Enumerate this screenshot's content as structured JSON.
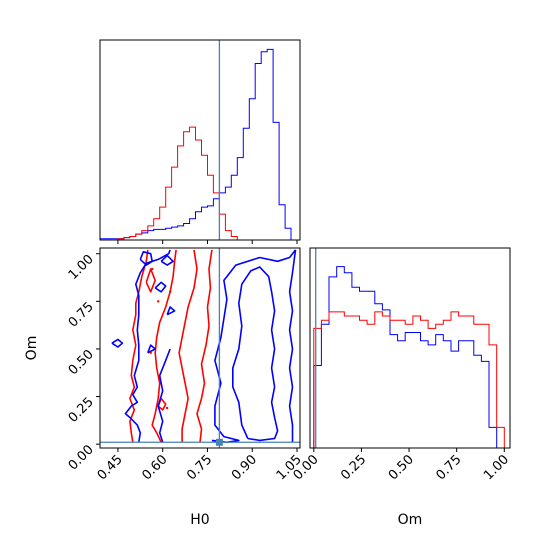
{
  "chart_data": {
    "type": "corner",
    "parameters": [
      "H0",
      "Om"
    ],
    "axis_labels": {
      "H0": "H0",
      "Om": "Om"
    },
    "ranges": {
      "H0": [
        0.39,
        1.06
      ],
      "Om": [
        -0.02,
        1.03
      ]
    },
    "ticks": {
      "H0": [
        "0.45",
        "0.60",
        "0.75",
        "0.90",
        "1.05"
      ],
      "Om": [
        "0.00",
        "0.25",
        "0.50",
        "0.75",
        "1.00"
      ]
    },
    "truth": {
      "H0": 0.79,
      "Om": 0.01
    },
    "colors": {
      "run_a": "#0000ff",
      "run_b": "#ff0000",
      "truth": "#4682b4"
    },
    "hist_H0": {
      "bin_edges": [
        0.39,
        0.41,
        0.43,
        0.45,
        0.47,
        0.49,
        0.51,
        0.53,
        0.55,
        0.57,
        0.59,
        0.61,
        0.63,
        0.65,
        0.67,
        0.69,
        0.71,
        0.73,
        0.75,
        0.77,
        0.79,
        0.81,
        0.83,
        0.85,
        0.87,
        0.89,
        0.91,
        0.93,
        0.95,
        0.97,
        0.99,
        1.01,
        1.03
      ],
      "run_a": [
        1,
        1,
        1,
        1,
        2,
        3,
        5,
        6,
        8,
        9,
        9,
        10,
        11,
        12,
        14,
        18,
        24,
        28,
        29,
        35,
        40,
        45,
        55,
        70,
        95,
        120,
        150,
        160,
        162,
        100,
        30,
        10
      ],
      "run_b": [
        0,
        0,
        0,
        1,
        2,
        3,
        5,
        8,
        12,
        18,
        28,
        45,
        62,
        80,
        92,
        96,
        85,
        72,
        55,
        40,
        22,
        8,
        3,
        0,
        0,
        0,
        0,
        0,
        0,
        0,
        0,
        0
      ],
      "ylim": [
        0,
        170
      ]
    },
    "hist_Om": {
      "bin_edges": [
        0.0,
        0.04,
        0.08,
        0.12,
        0.16,
        0.2,
        0.24,
        0.28,
        0.32,
        0.36,
        0.4,
        0.44,
        0.48,
        0.52,
        0.56,
        0.6,
        0.64,
        0.68,
        0.72,
        0.76,
        0.8,
        0.84,
        0.88,
        0.92,
        0.96,
        1.0
      ],
      "run_a": [
        0.4,
        0.6,
        0.83,
        0.88,
        0.85,
        0.78,
        0.76,
        0.76,
        0.7,
        0.67,
        0.55,
        0.52,
        0.56,
        0.56,
        0.52,
        0.5,
        0.55,
        0.52,
        0.47,
        0.52,
        0.52,
        0.45,
        0.42,
        0.1,
        0.0
      ],
      "run_b": [
        0.58,
        0.62,
        0.66,
        0.66,
        0.64,
        0.64,
        0.62,
        0.6,
        0.66,
        0.64,
        0.62,
        0.62,
        0.6,
        0.64,
        0.62,
        0.58,
        0.6,
        0.62,
        0.66,
        0.64,
        0.64,
        0.6,
        0.6,
        0.5,
        0.1
      ],
      "ylim": [
        0,
        0.97
      ]
    },
    "contours": {
      "run_a": [
        [
          [
            0.885,
            0.03
          ],
          [
            0.925,
            0.02
          ],
          [
            0.975,
            0.03
          ],
          [
            0.985,
            0.07
          ],
          [
            0.975,
            0.14
          ],
          [
            0.965,
            0.22
          ],
          [
            0.975,
            0.3
          ],
          [
            0.965,
            0.4
          ],
          [
            0.975,
            0.5
          ],
          [
            0.965,
            0.6
          ],
          [
            0.975,
            0.7
          ],
          [
            0.965,
            0.8
          ],
          [
            0.955,
            0.88
          ],
          [
            0.925,
            0.93
          ],
          [
            0.895,
            0.91
          ],
          [
            0.865,
            0.84
          ],
          [
            0.855,
            0.74
          ],
          [
            0.865,
            0.62
          ],
          [
            0.855,
            0.5
          ],
          [
            0.835,
            0.4
          ],
          [
            0.835,
            0.3
          ],
          [
            0.855,
            0.22
          ],
          [
            0.865,
            0.1
          ],
          [
            0.885,
            0.03
          ]
        ],
        [
          [
            0.765,
            0.02
          ],
          [
            0.815,
            0.01
          ],
          [
            0.855,
            0.02
          ],
          [
            0.805,
            0.04
          ],
          [
            0.775,
            0.1
          ],
          [
            0.775,
            0.2
          ],
          [
            0.795,
            0.32
          ],
          [
            0.775,
            0.44
          ],
          [
            0.795,
            0.56
          ],
          [
            0.805,
            0.66
          ],
          [
            0.815,
            0.76
          ],
          [
            0.805,
            0.86
          ],
          [
            0.845,
            0.94
          ],
          [
            0.925,
            0.98
          ],
          [
            0.985,
            0.96
          ],
          [
            1.025,
            0.98
          ],
          [
            1.045,
            1.02
          ]
        ],
        [
          [
            1.035,
            0.01
          ],
          [
            1.035,
            0.1
          ],
          [
            1.025,
            0.2
          ],
          [
            1.035,
            0.3
          ],
          [
            1.025,
            0.4
          ],
          [
            1.035,
            0.5
          ],
          [
            1.025,
            0.6
          ],
          [
            1.035,
            0.7
          ],
          [
            1.025,
            0.8
          ],
          [
            1.035,
            0.9
          ],
          [
            1.045,
            1.02
          ]
        ],
        [
          [
            0.6,
            0.01
          ],
          [
            0.59,
            0.06
          ],
          [
            0.6,
            0.12
          ],
          [
            0.585,
            0.2
          ],
          [
            0.6,
            0.28
          ],
          [
            0.59,
            0.36
          ],
          [
            0.61,
            0.44
          ],
          [
            0.625,
            0.5
          ]
        ],
        [
          [
            0.52,
            0.01
          ],
          [
            0.525,
            0.06
          ],
          [
            0.515,
            0.1
          ],
          [
            0.49,
            0.14
          ],
          [
            0.475,
            0.16
          ],
          [
            0.495,
            0.2
          ],
          [
            0.515,
            0.22
          ],
          [
            0.5,
            0.26
          ],
          [
            0.515,
            0.3
          ],
          [
            0.505,
            0.36
          ],
          [
            0.52,
            0.44
          ],
          [
            0.52,
            0.52
          ],
          [
            0.515,
            0.6
          ],
          [
            0.52,
            0.68
          ],
          [
            0.52,
            0.78
          ],
          [
            0.51,
            0.84
          ],
          [
            0.525,
            0.9
          ],
          [
            0.545,
            0.95
          ],
          [
            0.585,
            0.97
          ],
          [
            0.62,
            1.0
          ],
          [
            0.625,
            1.02
          ]
        ],
        [
          [
            0.525,
            0.97
          ],
          [
            0.545,
            0.94
          ],
          [
            0.565,
            0.96
          ],
          [
            0.56,
            1.0
          ],
          [
            0.535,
            1.01
          ],
          [
            0.525,
            0.97
          ]
        ],
        [
          [
            0.43,
            0.53
          ],
          [
            0.45,
            0.51
          ],
          [
            0.465,
            0.53
          ],
          [
            0.45,
            0.55
          ],
          [
            0.43,
            0.53
          ]
        ],
        [
          [
            0.55,
            0.48
          ],
          [
            0.575,
            0.5
          ],
          [
            0.56,
            0.52
          ],
          [
            0.55,
            0.48
          ]
        ],
        [
          [
            0.615,
            0.68
          ],
          [
            0.64,
            0.7
          ],
          [
            0.625,
            0.72
          ],
          [
            0.615,
            0.68
          ]
        ],
        [
          [
            0.575,
            0.82
          ],
          [
            0.595,
            0.8
          ],
          [
            0.61,
            0.83
          ],
          [
            0.595,
            0.85
          ],
          [
            0.575,
            0.82
          ]
        ],
        [
          [
            0.595,
            0.96
          ],
          [
            0.615,
            0.94
          ],
          [
            0.635,
            0.96
          ],
          [
            0.615,
            0.99
          ],
          [
            0.595,
            0.96
          ]
        ]
      ],
      "run_b": [
        [
          [
            0.725,
            0.01
          ],
          [
            0.73,
            0.08
          ],
          [
            0.715,
            0.16
          ],
          [
            0.73,
            0.24
          ],
          [
            0.74,
            0.32
          ],
          [
            0.73,
            0.42
          ],
          [
            0.745,
            0.52
          ],
          [
            0.755,
            0.62
          ],
          [
            0.75,
            0.72
          ],
          [
            0.76,
            0.82
          ],
          [
            0.755,
            0.92
          ],
          [
            0.765,
            1.02
          ]
        ],
        [
          [
            0.665,
            0.01
          ],
          [
            0.665,
            0.08
          ],
          [
            0.675,
            0.16
          ],
          [
            0.685,
            0.24
          ],
          [
            0.675,
            0.32
          ],
          [
            0.665,
            0.4
          ],
          [
            0.655,
            0.48
          ],
          [
            0.665,
            0.56
          ],
          [
            0.675,
            0.64
          ],
          [
            0.685,
            0.72
          ],
          [
            0.705,
            0.82
          ],
          [
            0.715,
            0.92
          ],
          [
            0.705,
            1.02
          ]
        ],
        [
          [
            0.595,
            0.01
          ],
          [
            0.58,
            0.06
          ],
          [
            0.565,
            0.1
          ],
          [
            0.575,
            0.16
          ],
          [
            0.585,
            0.24
          ],
          [
            0.59,
            0.32
          ],
          [
            0.58,
            0.4
          ],
          [
            0.575,
            0.48
          ],
          [
            0.58,
            0.56
          ],
          [
            0.59,
            0.64
          ],
          [
            0.61,
            0.72
          ],
          [
            0.625,
            0.8
          ],
          [
            0.635,
            0.88
          ],
          [
            0.64,
            0.96
          ],
          [
            0.645,
            1.02
          ]
        ],
        [
          [
            0.5,
            0.01
          ],
          [
            0.495,
            0.06
          ],
          [
            0.49,
            0.12
          ],
          [
            0.505,
            0.18
          ],
          [
            0.49,
            0.24
          ],
          [
            0.505,
            0.3
          ],
          [
            0.495,
            0.36
          ],
          [
            0.5,
            0.44
          ],
          [
            0.51,
            0.52
          ],
          [
            0.5,
            0.6
          ],
          [
            0.51,
            0.68
          ],
          [
            0.51,
            0.74
          ],
          [
            0.52,
            0.8
          ],
          [
            0.53,
            0.88
          ],
          [
            0.545,
            0.96
          ],
          [
            0.55,
            1.02
          ]
        ],
        [
          [
            0.545,
            0.85
          ],
          [
            0.56,
            0.8
          ],
          [
            0.575,
            0.86
          ],
          [
            0.56,
            0.92
          ],
          [
            0.545,
            0.85
          ]
        ],
        [
          [
            0.585,
            0.2
          ],
          [
            0.6,
            0.18
          ],
          [
            0.61,
            0.21
          ],
          [
            0.595,
            0.24
          ],
          [
            0.585,
            0.2
          ]
        ]
      ],
      "run_b_dots": [
        [
          0.585,
          0.75
        ],
        [
          0.56,
          0.48
        ],
        [
          0.615,
          0.19
        ],
        [
          0.625,
          0.8
        ],
        [
          0.565,
          0.92
        ]
      ]
    }
  }
}
